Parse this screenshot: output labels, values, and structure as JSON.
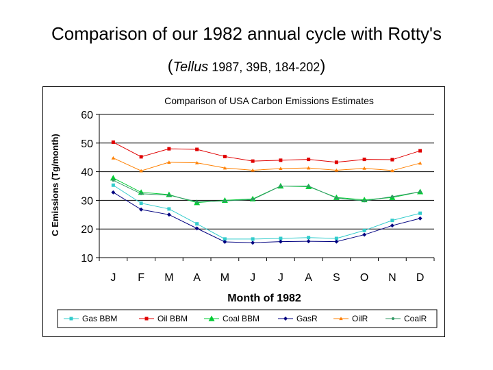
{
  "slide": {
    "title": "Comparison of our 1982 annual cycle with Rotty's",
    "subtitle": {
      "open_paren": "(",
      "journal": "Tellus",
      "citation": " 1987, 39B, 184-202",
      "close_paren": ")"
    }
  },
  "chart_data": {
    "type": "line",
    "title": "Comparison of USA Carbon Emissions Estimates",
    "xlabel": "Month of 1982",
    "ylabel": "C Emissions (Tg/month)",
    "categories": [
      "J",
      "F",
      "M",
      "A",
      "M",
      "J",
      "J",
      "A",
      "S",
      "O",
      "N",
      "D"
    ],
    "ylim": [
      10,
      60
    ],
    "yticks": [
      10,
      20,
      30,
      40,
      50,
      60
    ],
    "grid": true,
    "legend_position": "bottom",
    "series": [
      {
        "name": "Gas BBM",
        "color": "#33CCCC",
        "marker": "square",
        "values": [
          35.3,
          29,
          27,
          21.8,
          16.5,
          16.5,
          16.7,
          17,
          16.7,
          19.5,
          23,
          25.5
        ]
      },
      {
        "name": "Oil BBM",
        "color": "#E00000",
        "marker": "square",
        "values": [
          50.3,
          45.2,
          48,
          47.8,
          45.3,
          43.7,
          44,
          44.3,
          43.3,
          44.3,
          44.2,
          47.3
        ]
      },
      {
        "name": "Coal BBM",
        "color": "#00CC33",
        "marker": "triangle",
        "values": [
          37.8,
          32.8,
          32,
          29.2,
          30,
          30.5,
          35,
          34.8,
          31,
          30.2,
          31,
          33
        ]
      },
      {
        "name": "GasR",
        "color": "#000080",
        "marker": "diamond",
        "values": [
          32.8,
          26.8,
          25,
          20.2,
          15.5,
          15.2,
          15.6,
          15.7,
          15.6,
          18,
          21.2,
          23.7
        ]
      },
      {
        "name": "OilR",
        "color": "#FF8000",
        "marker": "triangle",
        "values": [
          44.8,
          40.3,
          43.3,
          43.1,
          41.3,
          40.5,
          41.1,
          41.3,
          40.5,
          41.2,
          40.4,
          43
        ]
      },
      {
        "name": "CoalR",
        "color": "#339966",
        "marker": "circle",
        "values": [
          37,
          32.3,
          31.8,
          29.5,
          29.8,
          30.3,
          35,
          35,
          30.8,
          29.8,
          31.3,
          33
        ]
      }
    ]
  }
}
